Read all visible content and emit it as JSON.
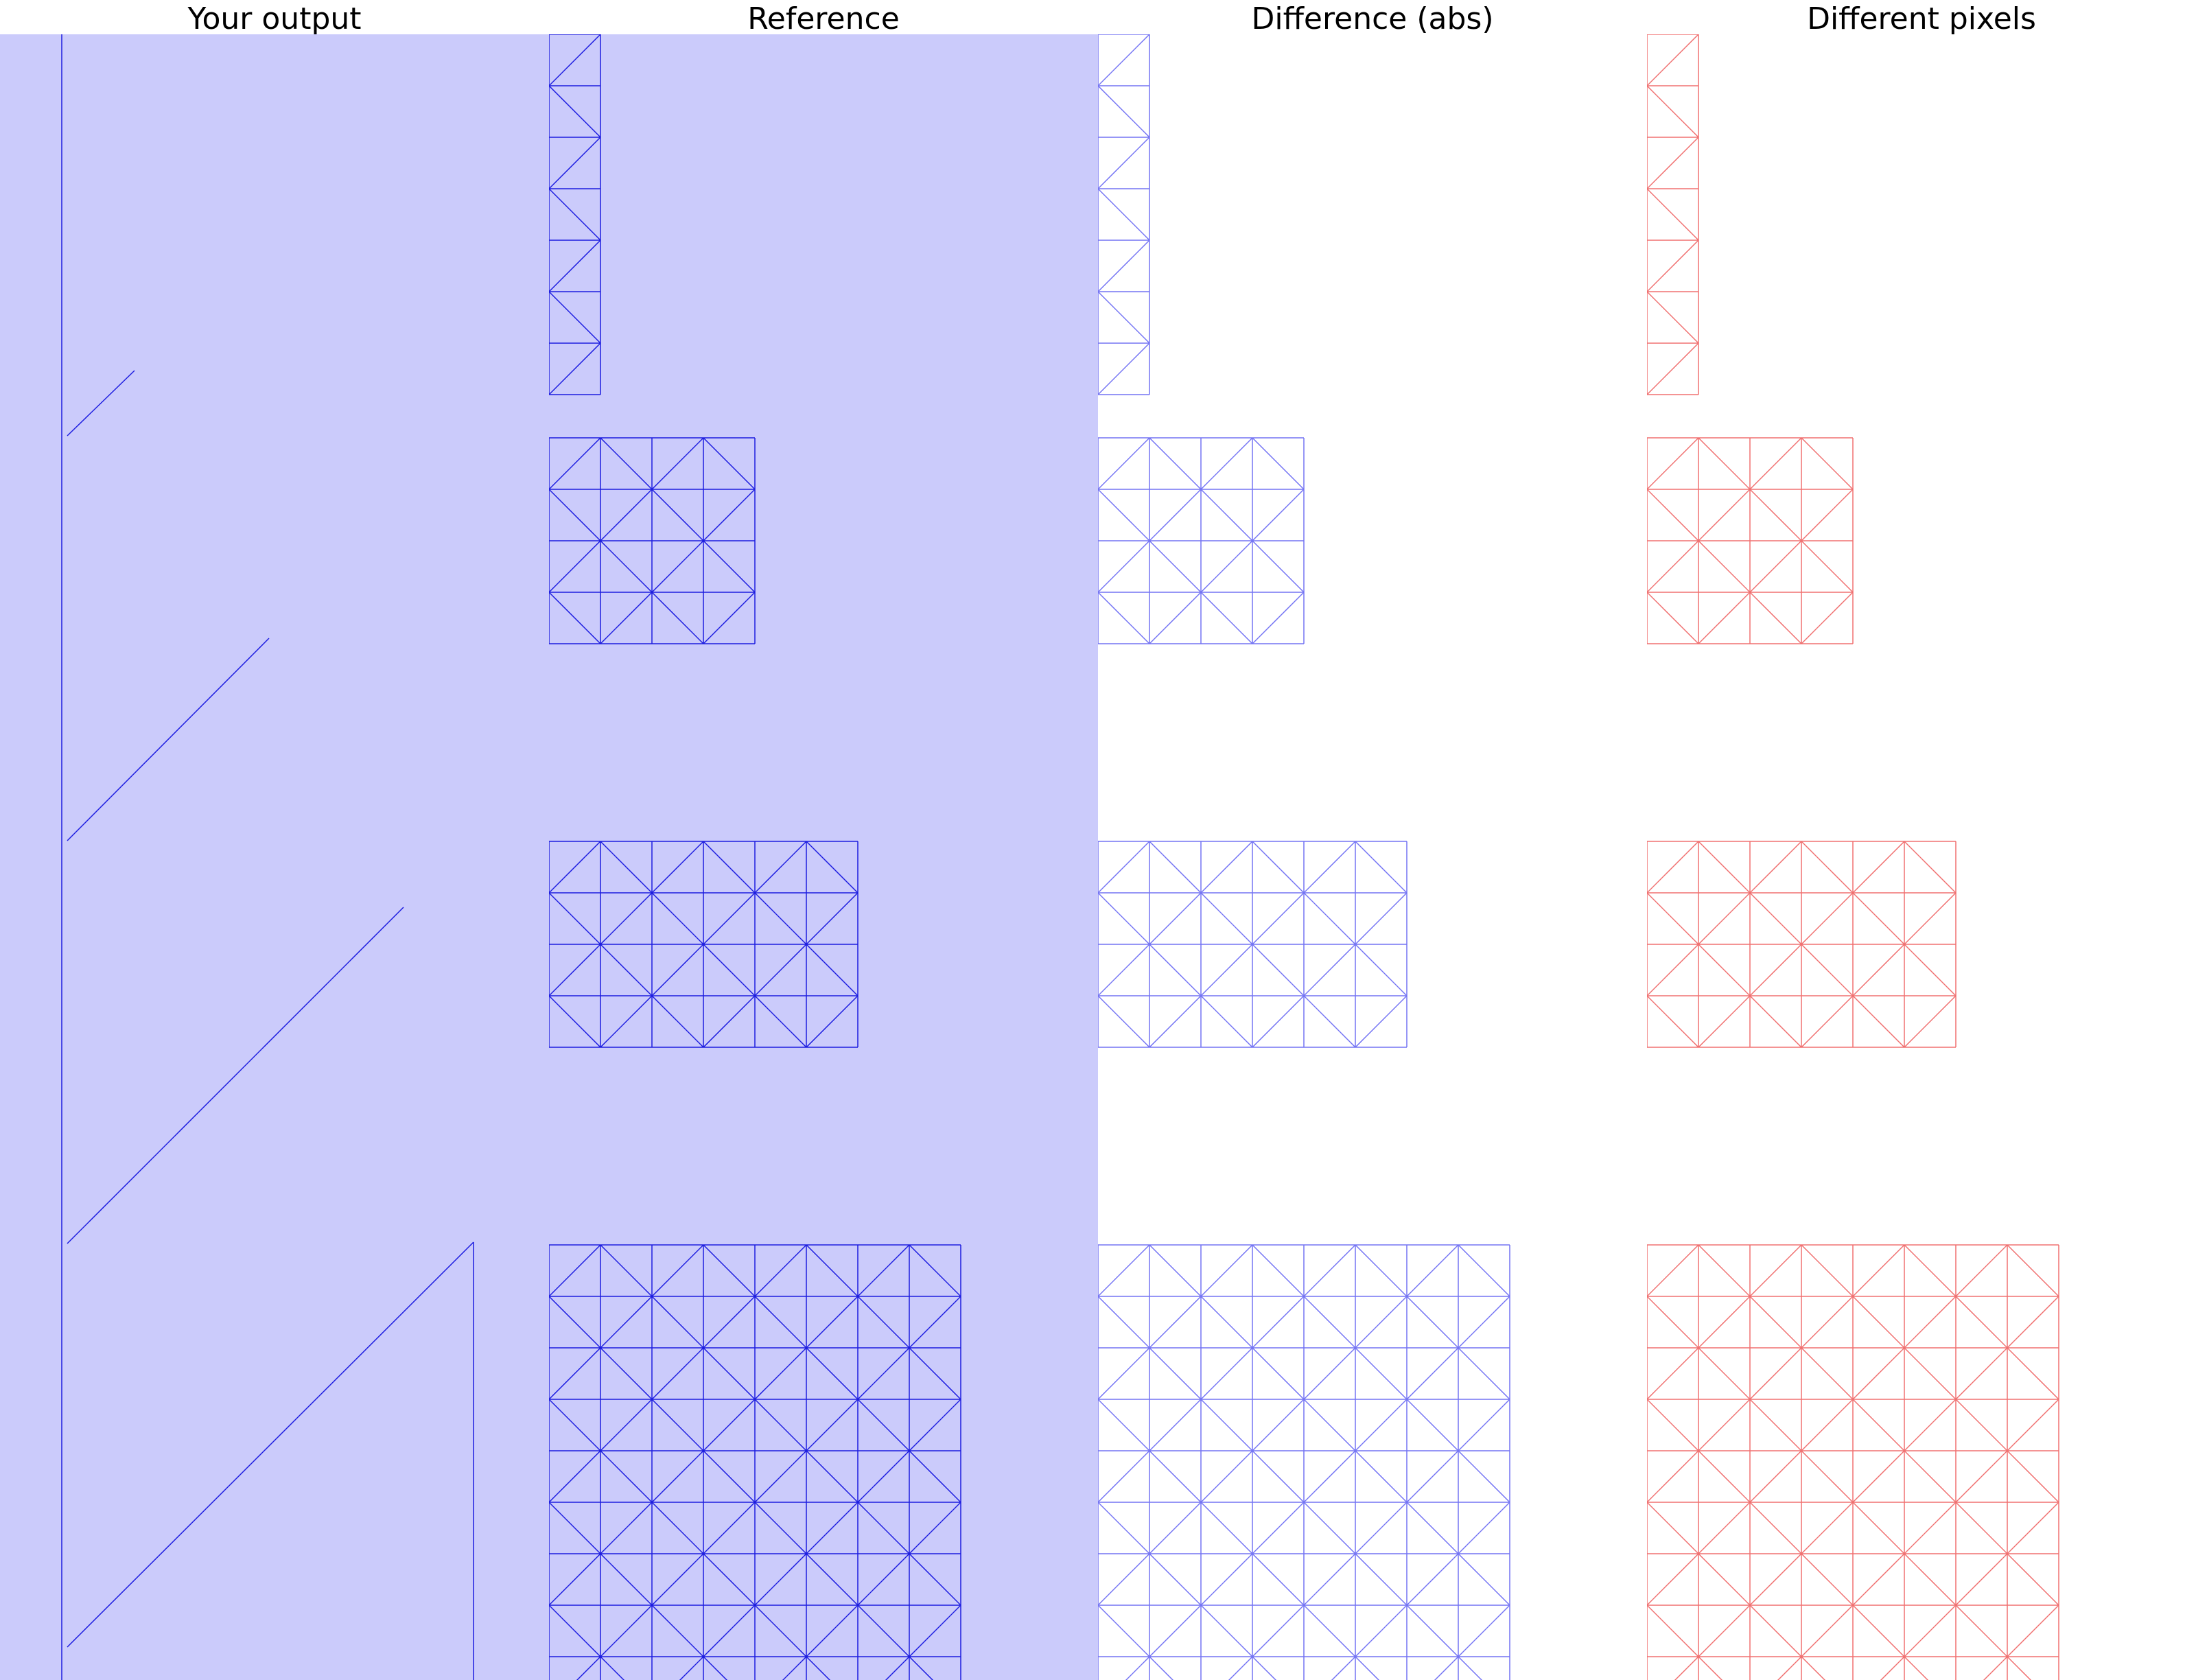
{
  "panels": [
    {
      "title": "Your output"
    },
    {
      "title": "Reference"
    },
    {
      "title": "Difference (abs)"
    },
    {
      "title": "Different pixels"
    }
  ],
  "colors": {
    "canvas_background": "#cbcbfb",
    "wire_blue": "#1d1de0",
    "diff_blue": "#7474f4",
    "diff_red": "#f07070",
    "title_text": "#000000",
    "page_background": "#ffffff"
  }
}
